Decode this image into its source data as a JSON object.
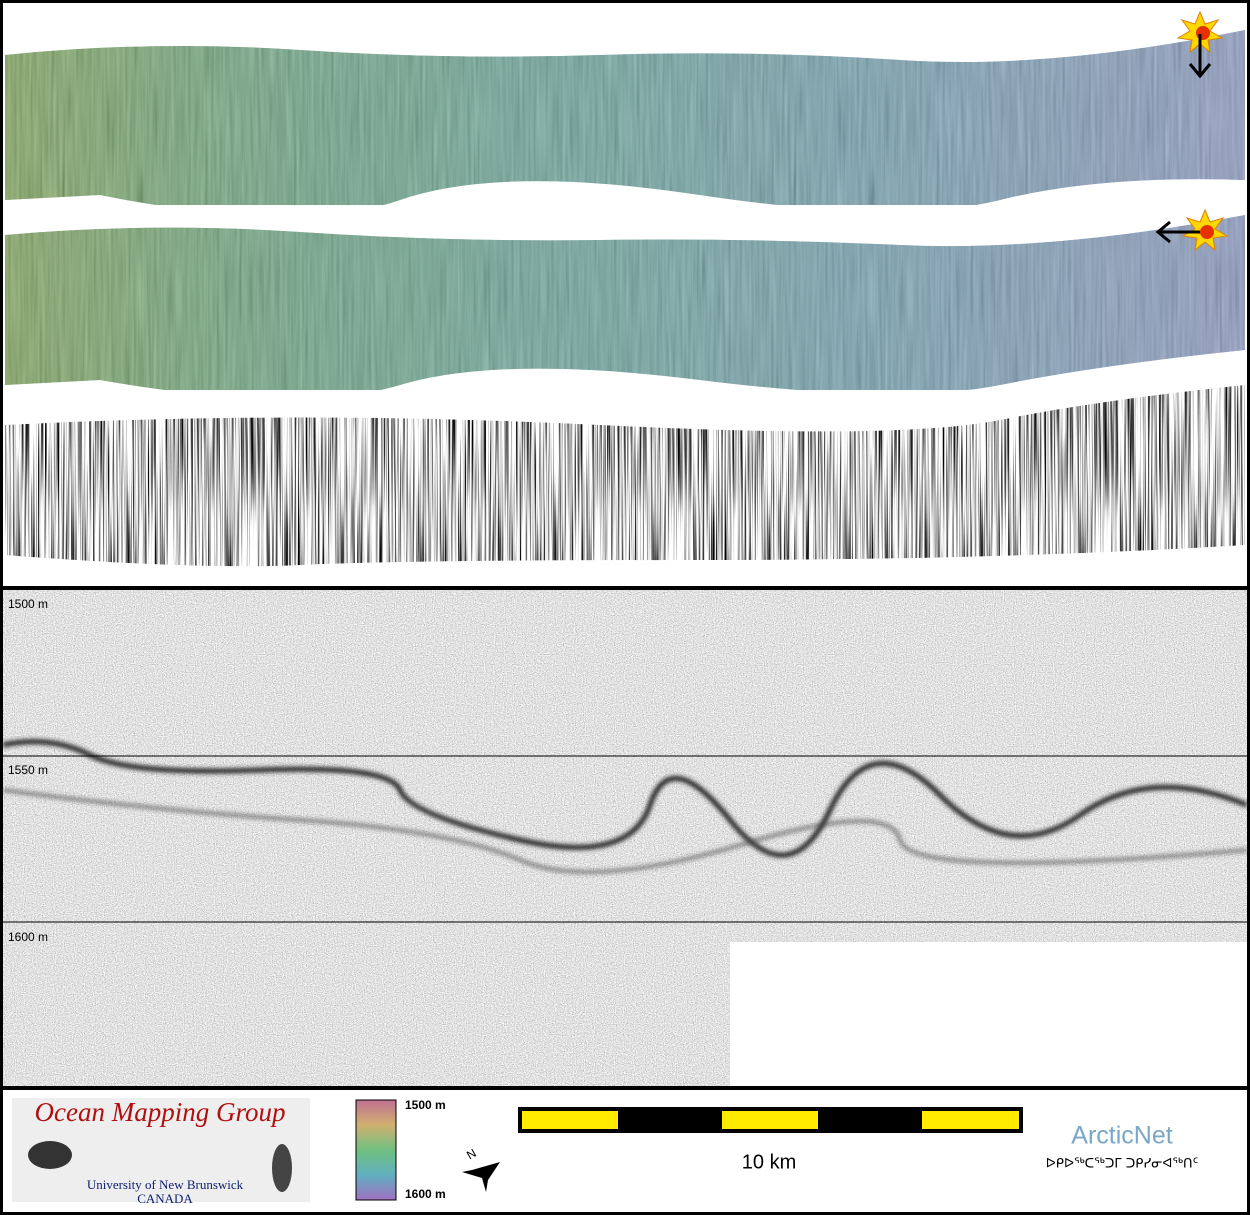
{
  "profile": {
    "depth_labels": [
      "1500 m",
      "1550 m",
      "1600 m"
    ]
  },
  "legend": {
    "logo_title": "Ocean Mapping Group",
    "logo_university": "University of New Brunswick",
    "logo_country": "CANADA",
    "colorbar_top": "1500 m",
    "colorbar_bottom": "1600 m",
    "north": "N",
    "scale_label": "10 km",
    "partner": "ArcticNet",
    "partner_syllabics": "ᐅᑭᐅᖅᑕᖅᑐᒥ ᑐᑭᓯᓂᐊᖅᑎᑦ"
  }
}
